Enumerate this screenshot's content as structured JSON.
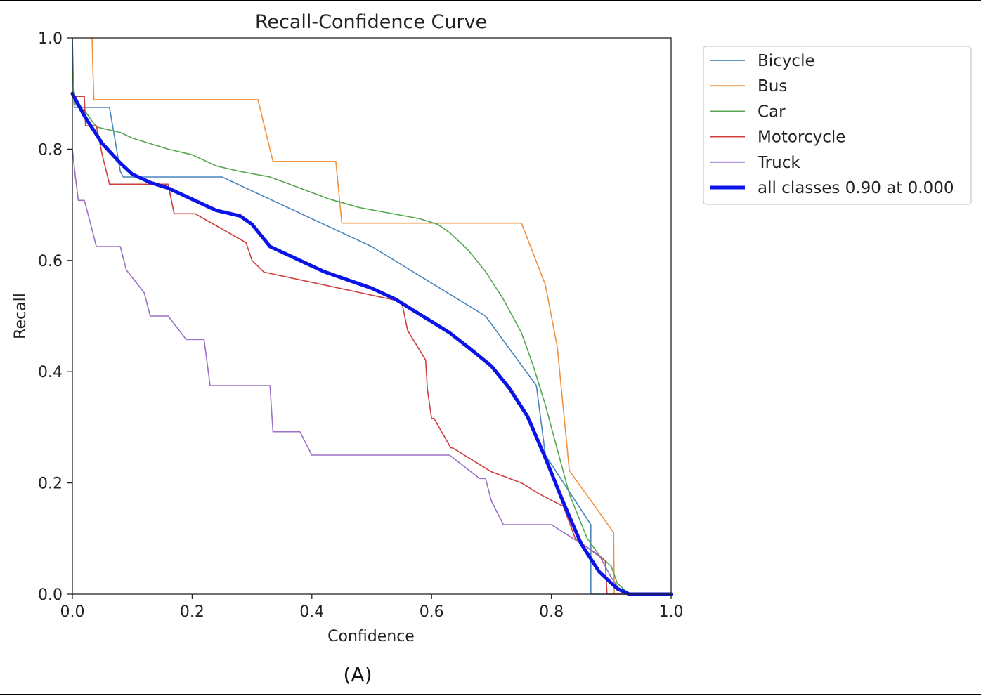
{
  "caption": "(A)",
  "colors": {
    "Bicycle": "#4a86bd",
    "Bus": "#f0923f",
    "Car": "#55a84f",
    "Motorcycle": "#cf3f3f",
    "Truck": "#9a71c6",
    "all": "#0a14e6"
  },
  "chart_data": {
    "type": "line",
    "title": "Recall-Confidence Curve",
    "xlabel": "Confidence",
    "ylabel": "Recall",
    "xlim": [
      0,
      1
    ],
    "ylim": [
      0,
      1
    ],
    "xticks": [
      "0.0",
      "0.2",
      "0.4",
      "0.6",
      "0.8",
      "1.0"
    ],
    "yticks": [
      "0.0",
      "0.2",
      "0.4",
      "0.6",
      "0.8",
      "1.0"
    ],
    "grid": false,
    "legend_position": "outside-right",
    "series": [
      {
        "name": "Bicycle",
        "x": [
          0.0,
          0.001,
          0.002,
          0.003,
          0.004,
          0.005,
          0.03,
          0.062,
          0.07,
          0.08,
          0.085,
          0.25,
          0.5,
          0.69,
          0.775,
          0.79,
          0.866,
          0.866,
          1.0
        ],
        "y": [
          1.0,
          0.95,
          0.9,
          0.875,
          0.875,
          0.875,
          0.875,
          0.875,
          0.825,
          0.76,
          0.75,
          0.75,
          0.625,
          0.5,
          0.375,
          0.25,
          0.125,
          0.0,
          0.0
        ]
      },
      {
        "name": "Bus",
        "x": [
          0.033,
          0.034,
          0.036,
          0.31,
          0.335,
          0.345,
          0.44,
          0.45,
          0.75,
          0.79,
          0.81,
          0.83,
          0.904,
          0.905,
          1.0
        ],
        "y": [
          1.0,
          0.95,
          0.889,
          0.889,
          0.778,
          0.778,
          0.778,
          0.667,
          0.667,
          0.556,
          0.444,
          0.222,
          0.111,
          0.0,
          0.0
        ]
      },
      {
        "name": "Car",
        "x": [
          0.0,
          0.005,
          0.02,
          0.04,
          0.06,
          0.08,
          0.1,
          0.13,
          0.16,
          0.2,
          0.24,
          0.28,
          0.33,
          0.38,
          0.43,
          0.48,
          0.53,
          0.58,
          0.61,
          0.63,
          0.66,
          0.69,
          0.72,
          0.75,
          0.77,
          0.79,
          0.81,
          0.83,
          0.86,
          0.88,
          0.9,
          0.91,
          0.93,
          1.0
        ],
        "y": [
          0.94,
          0.88,
          0.87,
          0.84,
          0.835,
          0.83,
          0.82,
          0.81,
          0.8,
          0.79,
          0.77,
          0.76,
          0.75,
          0.73,
          0.71,
          0.695,
          0.685,
          0.675,
          0.665,
          0.65,
          0.62,
          0.58,
          0.53,
          0.47,
          0.41,
          0.34,
          0.26,
          0.18,
          0.1,
          0.07,
          0.05,
          0.02,
          0.0,
          0.0
        ]
      },
      {
        "name": "Motorcycle",
        "x": [
          0.003,
          0.02,
          0.022,
          0.04,
          0.05,
          0.05,
          0.062,
          0.065,
          0.16,
          0.17,
          0.205,
          0.29,
          0.3,
          0.32,
          0.32,
          0.55,
          0.56,
          0.59,
          0.593,
          0.6,
          0.604,
          0.632,
          0.635,
          0.7,
          0.75,
          0.78,
          0.82,
          0.84,
          0.89,
          0.893,
          0.9,
          1.0
        ],
        "y": [
          0.895,
          0.895,
          0.842,
          0.842,
          0.789,
          0.789,
          0.737,
          0.737,
          0.737,
          0.684,
          0.684,
          0.632,
          0.6,
          0.579,
          0.579,
          0.526,
          0.474,
          0.421,
          0.368,
          0.316,
          0.316,
          0.263,
          0.263,
          0.22,
          0.2,
          0.18,
          0.158,
          0.1,
          0.06,
          0.0,
          0.0,
          0.0
        ]
      },
      {
        "name": "Truck",
        "x": [
          0.0,
          0.005,
          0.01,
          0.02,
          0.03,
          0.04,
          0.05,
          0.08,
          0.09,
          0.12,
          0.13,
          0.16,
          0.19,
          0.22,
          0.23,
          0.33,
          0.335,
          0.38,
          0.4,
          0.63,
          0.68,
          0.69,
          0.7,
          0.72,
          0.8,
          0.88,
          0.9,
          0.92,
          1.0
        ],
        "y": [
          0.8,
          0.75,
          0.708,
          0.708,
          0.667,
          0.625,
          0.625,
          0.625,
          0.583,
          0.542,
          0.5,
          0.5,
          0.458,
          0.458,
          0.375,
          0.375,
          0.292,
          0.292,
          0.25,
          0.25,
          0.208,
          0.208,
          0.167,
          0.125,
          0.125,
          0.07,
          0.03,
          0.0,
          0.0
        ]
      },
      {
        "name": "all classes 0.90 at 0.000",
        "x": [
          0.0,
          0.02,
          0.05,
          0.08,
          0.1,
          0.13,
          0.16,
          0.2,
          0.24,
          0.28,
          0.3,
          0.33,
          0.35,
          0.38,
          0.42,
          0.46,
          0.5,
          0.54,
          0.57,
          0.6,
          0.63,
          0.66,
          0.7,
          0.73,
          0.76,
          0.79,
          0.82,
          0.85,
          0.88,
          0.91,
          0.93,
          0.95,
          1.0
        ],
        "y": [
          0.9,
          0.86,
          0.81,
          0.775,
          0.755,
          0.74,
          0.73,
          0.71,
          0.69,
          0.68,
          0.665,
          0.625,
          0.615,
          0.6,
          0.58,
          0.565,
          0.55,
          0.53,
          0.51,
          0.49,
          0.47,
          0.445,
          0.41,
          0.37,
          0.32,
          0.245,
          0.165,
          0.09,
          0.04,
          0.01,
          0.0,
          0.0,
          0.0
        ]
      }
    ]
  }
}
